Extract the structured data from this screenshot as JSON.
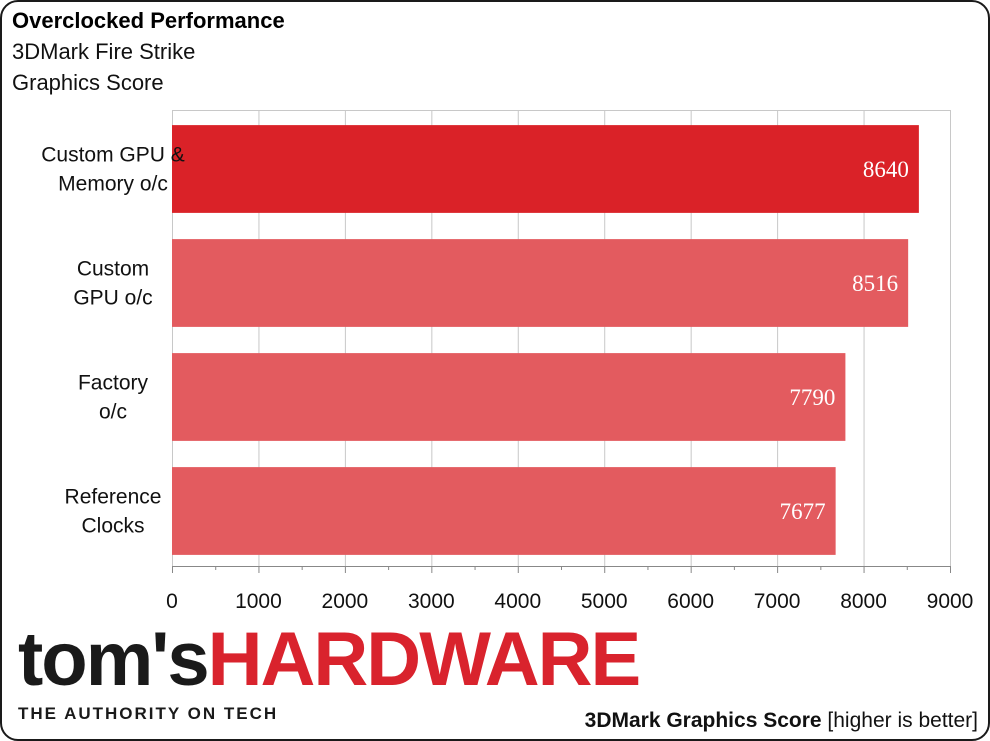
{
  "header": {
    "title": "Overclocked Performance",
    "subtitle_line1": "3DMark Fire Strike",
    "subtitle_line2": "Graphics Score"
  },
  "chart_data": {
    "type": "bar",
    "orientation": "horizontal",
    "categories": [
      [
        "Custom GPU &",
        "Memory o/c"
      ],
      [
        "Custom",
        "GPU o/c"
      ],
      [
        "Factory",
        "o/c"
      ],
      [
        "Reference",
        "Clocks"
      ]
    ],
    "values": [
      8640,
      8516,
      7790,
      7677
    ],
    "highlight_index": 0,
    "xlim": [
      0,
      9000
    ],
    "xticks": [
      0,
      1000,
      2000,
      3000,
      4000,
      5000,
      6000,
      7000,
      8000,
      9000
    ],
    "minor_ticks_per_major": 2,
    "grid": true,
    "legend": "none",
    "xlabel": "",
    "ylabel": ""
  },
  "colors": {
    "bar_highlight": "#da2228",
    "bar_default": "#e35b5f",
    "grid": "#c8c8c8",
    "axis": "#888888"
  },
  "branding": {
    "logo_part1": "tom's",
    "logo_part2": "HARDWARE",
    "tagline": "THE AUTHORITY ON TECH",
    "logo_color": "#d9232d"
  },
  "footer": {
    "metric": "3DMark Graphics Score",
    "note": " [higher is better]"
  }
}
